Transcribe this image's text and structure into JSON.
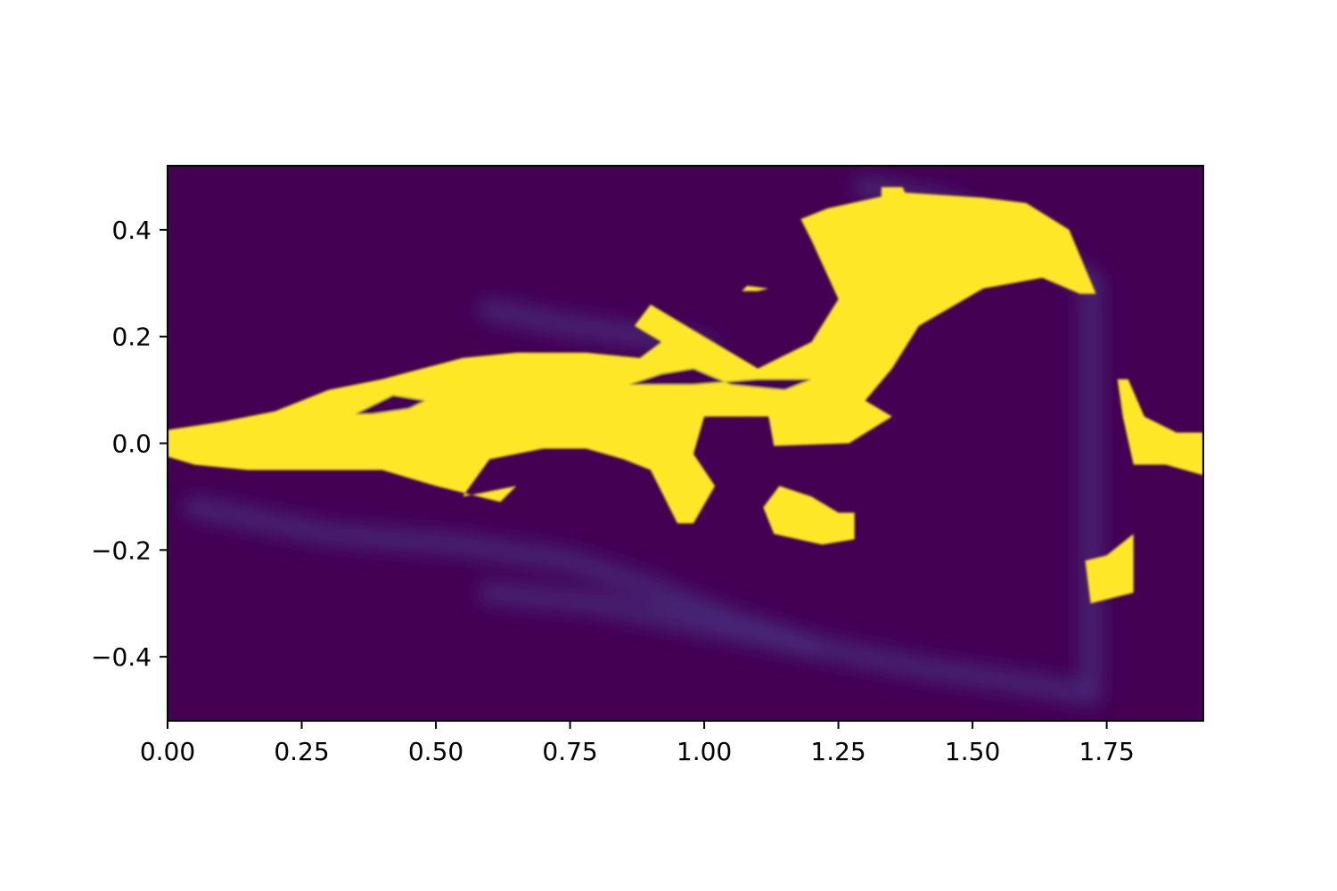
{
  "chart_data": {
    "type": "heatmap",
    "title": "",
    "xlabel": "",
    "ylabel": "",
    "xlim": [
      0.0,
      1.93
    ],
    "ylim": [
      -0.52,
      0.52
    ],
    "colormap": "viridis",
    "grid": false,
    "legend": "none",
    "colors": {
      "background": "#440154",
      "faint_structure": "#472d7b",
      "high_value": "#fde725"
    },
    "x_ticks": [
      0.0,
      0.25,
      0.5,
      0.75,
      1.0,
      1.25,
      1.5,
      1.75
    ],
    "x_tick_labels": [
      "0.00",
      "0.25",
      "0.50",
      "0.75",
      "1.00",
      "1.25",
      "1.50",
      "1.75"
    ],
    "y_ticks": [
      0.4,
      0.2,
      0.0,
      -0.2,
      -0.4
    ],
    "y_tick_labels": [
      "0.4",
      "0.2",
      "0.0",
      "−0.2",
      "−0.4"
    ],
    "faint_structures": [
      {
        "x": [
          0.05,
          0.3,
          0.55,
          0.75,
          0.9,
          1.05,
          1.2
        ],
        "y": [
          -0.12,
          -0.17,
          -0.19,
          -0.22,
          -0.27,
          -0.33,
          -0.38
        ]
      },
      {
        "x": [
          0.6,
          0.8,
          1.0,
          1.2,
          1.4,
          1.6,
          1.72
        ],
        "y": [
          -0.28,
          -0.3,
          -0.34,
          -0.38,
          -0.42,
          -0.45,
          -0.47
        ]
      },
      {
        "x": [
          0.6,
          0.75,
          0.9,
          1.0
        ],
        "y": [
          0.25,
          0.22,
          0.2,
          0.18
        ]
      },
      {
        "x": [
          1.3,
          1.45,
          1.6,
          1.72
        ],
        "y": [
          0.48,
          0.45,
          0.38,
          0.3
        ]
      },
      {
        "x": [
          1.72,
          1.72,
          1.72
        ],
        "y": [
          0.3,
          0.0,
          -0.45
        ]
      }
    ],
    "high_regions": [
      {
        "x": [
          0.0,
          0.1,
          0.2,
          0.3,
          0.4,
          0.55,
          0.65,
          0.78,
          0.88,
          0.92,
          0.87,
          0.9,
          1.0,
          1.1,
          1.2,
          1.25,
          1.2,
          1.18,
          1.23,
          1.32,
          1.37,
          1.52,
          1.6,
          1.68,
          1.73,
          1.7,
          1.63,
          1.52,
          1.4,
          1.35,
          1.3,
          1.35,
          1.27,
          1.13,
          1.12,
          1.0,
          0.98,
          1.02,
          0.98,
          0.95,
          0.9,
          0.85,
          0.78,
          0.7,
          0.6,
          0.55,
          0.65,
          0.62,
          0.5,
          0.4,
          0.3,
          0.15,
          0.05,
          0.0
        ],
        "y": [
          0.025,
          0.04,
          0.06,
          0.1,
          0.12,
          0.16,
          0.17,
          0.17,
          0.16,
          0.19,
          0.22,
          0.26,
          0.2,
          0.14,
          0.19,
          0.27,
          0.38,
          0.42,
          0.44,
          0.46,
          0.47,
          0.46,
          0.45,
          0.4,
          0.28,
          0.28,
          0.31,
          0.29,
          0.22,
          0.14,
          0.08,
          0.05,
          0.0,
          -0.005,
          0.05,
          0.05,
          -0.02,
          -0.08,
          -0.15,
          -0.15,
          -0.05,
          -0.03,
          -0.01,
          -0.01,
          -0.03,
          -0.1,
          -0.08,
          -0.11,
          -0.08,
          -0.05,
          -0.05,
          -0.05,
          -0.04,
          -0.025
        ]
      },
      {
        "x": [
          1.79,
          1.82,
          1.88,
          1.93,
          1.93,
          1.86,
          1.8,
          1.78,
          1.77,
          1.79
        ],
        "y": [
          0.12,
          0.05,
          0.02,
          0.02,
          -0.06,
          -0.04,
          -0.04,
          0.05,
          0.12,
          0.12
        ]
      },
      {
        "x": [
          1.14,
          1.2,
          1.25,
          1.28,
          1.28,
          1.22,
          1.13,
          1.11,
          1.14
        ],
        "y": [
          -0.08,
          -0.1,
          -0.13,
          -0.13,
          -0.18,
          -0.19,
          -0.17,
          -0.12,
          -0.08
        ]
      },
      {
        "x": [
          1.71,
          1.75,
          1.8,
          1.8,
          1.76,
          1.72,
          1.71
        ],
        "y": [
          -0.22,
          -0.21,
          -0.17,
          -0.28,
          -0.29,
          -0.3,
          -0.22
        ]
      },
      {
        "x": [
          1.33,
          1.37,
          1.38,
          1.36,
          1.33,
          1.33
        ],
        "y": [
          0.48,
          0.48,
          0.455,
          0.44,
          0.44,
          0.48
        ]
      },
      {
        "x": [
          1.08,
          1.12,
          1.1,
          1.07,
          1.08
        ],
        "y": [
          0.295,
          0.29,
          0.285,
          0.285,
          0.295
        ]
      }
    ],
    "low_holes": [
      {
        "x": [
          0.35,
          0.42,
          0.48,
          0.45,
          0.38,
          0.35
        ],
        "y": [
          0.055,
          0.09,
          0.08,
          0.065,
          0.055,
          0.055
        ]
      },
      {
        "x": [
          0.86,
          0.92,
          0.98,
          1.05,
          1.15,
          1.2,
          1.1,
          0.98,
          0.9,
          0.86
        ],
        "y": [
          0.11,
          0.13,
          0.14,
          0.11,
          0.1,
          0.12,
          0.12,
          0.11,
          0.11,
          0.11
        ]
      }
    ]
  }
}
